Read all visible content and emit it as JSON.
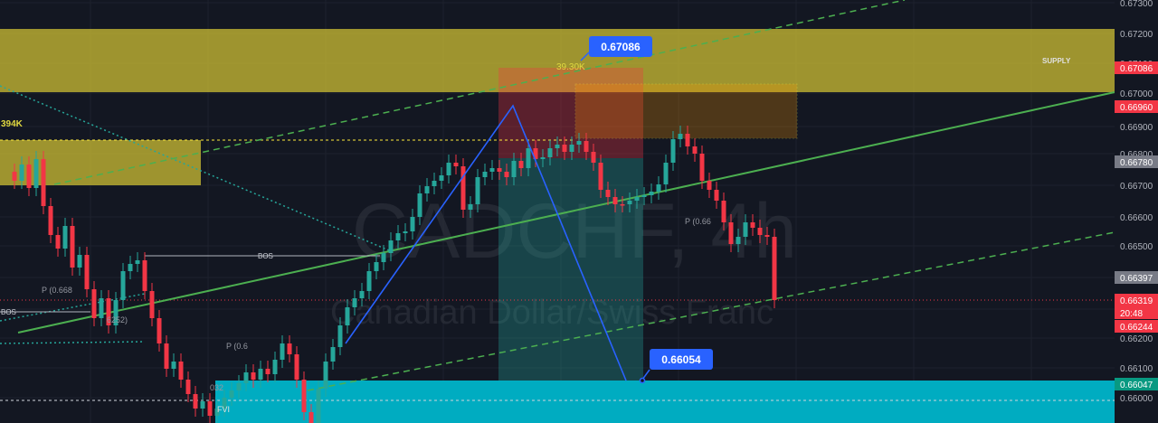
{
  "watermark": {
    "symbol": "CADCHF, 4h",
    "name": "Canadian Dollar/Swiss Franc"
  },
  "zones": {
    "supply_label": "SUPPLY",
    "volume_left": "394K",
    "volume_mid": "39.30K"
  },
  "markers": {
    "top_price": "0.67086",
    "target_price": "0.66054"
  },
  "labels": {
    "bos_mid": "BOS",
    "bos_left": "BOS",
    "pivot_a": "P (0.668",
    "pivot_b": "P (0.66",
    "pivot_c": "P (0.6",
    "pivot_d": "P (0.668",
    "small_a": "6252)",
    "small_b": "032",
    "fvg": "FVI"
  },
  "price_axis": {
    "ticks": [
      "0.67300",
      "0.67200",
      "0.67100",
      "0.67000",
      "0.66900",
      "0.66800",
      "0.66700",
      "0.66600",
      "0.66500",
      "0.66400",
      "0.66300",
      "0.66200",
      "0.66100",
      "0.66000"
    ],
    "tags": [
      {
        "text": "0.67086",
        "color": "#f23645"
      },
      {
        "text": "0.66960",
        "color": "#f23645"
      },
      {
        "text": "0.66780",
        "color": "#787b86"
      },
      {
        "text": "0.66397",
        "color": "#787b86"
      },
      {
        "text": "0.66319",
        "color": "#f23645"
      },
      {
        "text": "20:48",
        "color": "#f23645"
      },
      {
        "text": "0.66244",
        "color": "#f23645"
      },
      {
        "text": "0.66047",
        "color": "#089981"
      }
    ]
  },
  "colors": {
    "up": "#26a69a",
    "down": "#f23645",
    "supply": "#d4c534",
    "demand": "#00bcd4",
    "trend": "#4caf50",
    "projection": "#2962ff"
  },
  "chart_data": {
    "type": "candlestick",
    "symbol": "CADCHF",
    "timeframe": "4h",
    "ylim": [
      0.6596,
      0.6731
    ],
    "last_price": 0.66319,
    "annotations": [
      {
        "type": "zone",
        "label": "SUPPLY",
        "from": 0.6701,
        "to": 0.6722
      },
      {
        "type": "zone",
        "label": "",
        "from": 0.6669,
        "to": 0.6685
      },
      {
        "type": "zone",
        "label": "",
        "from": 0.6595,
        "to": 0.66054
      },
      {
        "type": "price_label",
        "value": 0.67086
      },
      {
        "type": "price_label",
        "value": 0.66054
      }
    ]
  }
}
